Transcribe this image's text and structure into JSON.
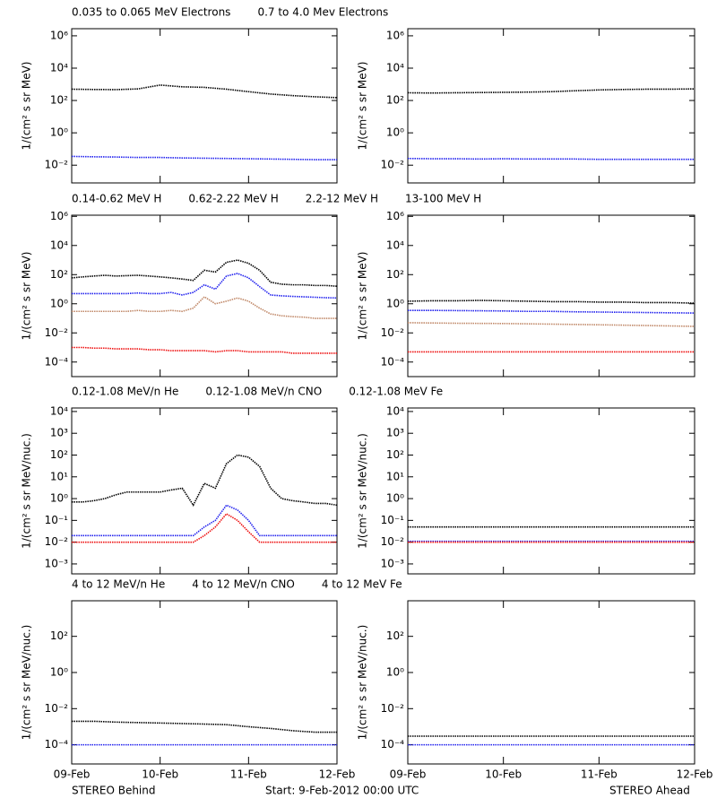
{
  "x_axis": {
    "xlim": [
      0,
      3
    ],
    "xticks": [
      {
        "value": 0,
        "label": "09-Feb"
      },
      {
        "value": 1,
        "label": "10-Feb"
      },
      {
        "value": 2,
        "label": "11-Feb"
      },
      {
        "value": 3,
        "label": "12-Feb"
      }
    ]
  },
  "footer": {
    "left": "STEREO Behind",
    "center": "Start:  9-Feb-2012 00:00 UTC",
    "right": "STEREO Ahead"
  },
  "chart_data": [
    {
      "type": "line",
      "log_y": true,
      "y_label": "1/(cm² s sr MeV)",
      "ylim": [
        0.0008,
        2750000
      ],
      "yticks": [
        {
          "value": 0.01,
          "label": "10⁻²"
        },
        {
          "value": 1,
          "label": "10⁰"
        },
        {
          "value": 100,
          "label": "10²"
        },
        {
          "value": 10000,
          "label": "10⁴"
        },
        {
          "value": 1000000,
          "label": "10⁶"
        }
      ],
      "x": [
        0,
        0.25,
        0.5,
        0.75,
        1,
        1.25,
        1.5,
        1.75,
        2,
        2.25,
        2.5,
        2.75,
        3
      ],
      "series": [
        {
          "name": "0.035 to 0.065 MeV Electrons",
          "color": "#000000",
          "values": [
            500,
            480,
            470,
            520,
            900,
            700,
            650,
            500,
            350,
            250,
            200,
            170,
            150
          ]
        },
        {
          "name": "0.7 to 4.0 Mev Electrons",
          "color": "#2222ee",
          "values": [
            0.035,
            0.033,
            0.032,
            0.03,
            0.03,
            0.028,
            0.027,
            0.026,
            0.025,
            0.024,
            0.023,
            0.022,
            0.022
          ]
        }
      ]
    },
    {
      "type": "line",
      "log_y": true,
      "y_label": "1/(cm² s sr MeV)",
      "ylim": [
        0.0008,
        2750000
      ],
      "yticks": [
        {
          "value": 0.01,
          "label": "10⁻²"
        },
        {
          "value": 1,
          "label": "10⁰"
        },
        {
          "value": 100,
          "label": "10²"
        },
        {
          "value": 10000,
          "label": "10⁴"
        },
        {
          "value": 1000000,
          "label": "10⁶"
        }
      ],
      "x": [
        0,
        0.25,
        0.5,
        0.75,
        1,
        1.25,
        1.5,
        1.75,
        2,
        2.25,
        2.5,
        2.75,
        3
      ],
      "series": [
        {
          "color": "#000000",
          "values": [
            300,
            290,
            300,
            310,
            320,
            330,
            350,
            400,
            450,
            480,
            500,
            500,
            520
          ]
        },
        {
          "color": "#2222ee",
          "values": [
            0.026,
            0.025,
            0.025,
            0.024,
            0.025,
            0.024,
            0.024,
            0.024,
            0.023,
            0.023,
            0.023,
            0.023,
            0.023
          ]
        }
      ]
    },
    {
      "type": "line",
      "log_y": true,
      "y_label": "1/(cm² s sr MeV)",
      "ylim": [
        1e-05,
        1200000
      ],
      "yticks": [
        {
          "value": 0.0001,
          "label": "10⁻⁴"
        },
        {
          "value": 0.01,
          "label": "10⁻²"
        },
        {
          "value": 1,
          "label": "10⁰"
        },
        {
          "value": 100,
          "label": "10²"
        },
        {
          "value": 10000,
          "label": "10⁴"
        },
        {
          "value": 1000000,
          "label": "10⁶"
        }
      ],
      "x": [
        0,
        0.125,
        0.25,
        0.375,
        0.5,
        0.625,
        0.75,
        0.875,
        1,
        1.125,
        1.25,
        1.375,
        1.5,
        1.625,
        1.75,
        1.875,
        2,
        2.125,
        2.25,
        2.375,
        2.5,
        2.625,
        2.75,
        2.875,
        3
      ],
      "series": [
        {
          "name": "0.14-0.62 MeV H",
          "color": "#000000",
          "values": [
            60,
            70,
            80,
            90,
            80,
            85,
            90,
            80,
            70,
            60,
            50,
            40,
            200,
            150,
            700,
            1000,
            600,
            200,
            30,
            22,
            20,
            20,
            18,
            18,
            16
          ]
        },
        {
          "name": "0.62-2.22 MeV H",
          "color": "#2222ee",
          "values": [
            5,
            5,
            5,
            5,
            5,
            5,
            5.5,
            5,
            5,
            6,
            4,
            6,
            20,
            10,
            80,
            120,
            60,
            15,
            4,
            3.5,
            3.2,
            3,
            2.8,
            2.6,
            2.5
          ]
        },
        {
          "name": "2.2-12 MeV H",
          "color": "#c08868",
          "values": [
            0.3,
            0.3,
            0.3,
            0.3,
            0.3,
            0.3,
            0.35,
            0.3,
            0.3,
            0.35,
            0.3,
            0.5,
            3,
            1,
            1.5,
            2.5,
            1.5,
            0.5,
            0.2,
            0.15,
            0.13,
            0.12,
            0.1,
            0.1,
            0.1
          ]
        },
        {
          "name": "13-100 MeV H",
          "color": "#ee1111",
          "values": [
            0.001,
            0.001,
            0.0009,
            0.0009,
            0.0008,
            0.0008,
            0.0008,
            0.0007,
            0.0007,
            0.0006,
            0.0006,
            0.0006,
            0.0006,
            0.0005,
            0.0006,
            0.0006,
            0.0005,
            0.0005,
            0.0005,
            0.0005,
            0.0004,
            0.0004,
            0.0004,
            0.0004,
            0.0004
          ]
        }
      ]
    },
    {
      "type": "line",
      "log_y": true,
      "y_label": "1/(cm² s sr MeV)",
      "ylim": [
        1e-05,
        1200000
      ],
      "yticks": [
        {
          "value": 0.0001,
          "label": "10⁻⁴"
        },
        {
          "value": 0.01,
          "label": "10⁻²"
        },
        {
          "value": 1,
          "label": "10⁰"
        },
        {
          "value": 100,
          "label": "10²"
        },
        {
          "value": 10000,
          "label": "10⁴"
        },
        {
          "value": 1000000,
          "label": "10⁶"
        }
      ],
      "x": [
        0,
        0.25,
        0.5,
        0.75,
        1,
        1.25,
        1.5,
        1.75,
        2,
        2.25,
        2.5,
        2.75,
        3
      ],
      "series": [
        {
          "color": "#000000",
          "values": [
            1.5,
            1.6,
            1.6,
            1.7,
            1.6,
            1.5,
            1.4,
            1.4,
            1.3,
            1.3,
            1.2,
            1.2,
            1.1
          ]
        },
        {
          "color": "#2222ee",
          "values": [
            0.35,
            0.35,
            0.34,
            0.33,
            0.32,
            0.3,
            0.3,
            0.28,
            0.27,
            0.26,
            0.25,
            0.24,
            0.23
          ]
        },
        {
          "color": "#c08868",
          "values": [
            0.05,
            0.048,
            0.046,
            0.045,
            0.044,
            0.042,
            0.04,
            0.038,
            0.036,
            0.034,
            0.032,
            0.03,
            0.028
          ]
        },
        {
          "color": "#ee1111",
          "values": [
            0.0005,
            0.0005,
            0.0005,
            0.0005,
            0.0005,
            0.0005,
            0.0005,
            0.0005,
            0.0005,
            0.0005,
            0.0005,
            0.0005,
            0.0005
          ]
        }
      ]
    },
    {
      "type": "line",
      "log_y": true,
      "y_label": "1/(cm² s sr MeV/nuc.)",
      "ylim": [
        0.00035,
        14500
      ],
      "yticks": [
        {
          "value": 0.001,
          "label": "10⁻³"
        },
        {
          "value": 0.01,
          "label": "10⁻²"
        },
        {
          "value": 0.1,
          "label": "10⁻¹"
        },
        {
          "value": 1,
          "label": "10⁰"
        },
        {
          "value": 10,
          "label": "10¹"
        },
        {
          "value": 100,
          "label": "10²"
        },
        {
          "value": 1000,
          "label": "10³"
        },
        {
          "value": 10000,
          "label": "10⁴"
        }
      ],
      "x": [
        0,
        0.125,
        0.25,
        0.375,
        0.5,
        0.625,
        0.75,
        0.875,
        1,
        1.125,
        1.25,
        1.375,
        1.5,
        1.625,
        1.75,
        1.875,
        2,
        2.125,
        2.25,
        2.375,
        2.5,
        2.625,
        2.75,
        2.875,
        3
      ],
      "series": [
        {
          "name": "0.12-1.08 MeV/n He",
          "color": "#000000",
          "values": [
            0.7,
            0.7,
            0.8,
            1,
            1.5,
            2,
            2,
            2,
            2,
            2.5,
            3,
            0.5,
            5,
            3,
            40,
            100,
            80,
            30,
            3,
            1,
            0.8,
            0.7,
            0.6,
            0.6,
            0.5
          ]
        },
        {
          "name": "0.12-1.08 MeV/n CNO",
          "color": "#2222ee",
          "values": [
            0.02,
            0.02,
            0.02,
            0.02,
            0.02,
            0.02,
            0.02,
            0.02,
            0.02,
            0.02,
            0.02,
            0.02,
            0.05,
            0.1,
            0.5,
            0.3,
            0.1,
            0.02,
            0.02,
            0.02,
            0.02,
            0.02,
            0.02,
            0.02,
            0.02
          ]
        },
        {
          "name": "0.12-1.08 MeV Fe",
          "color": "#ee1111",
          "values": [
            0.01,
            0.01,
            0.01,
            0.01,
            0.01,
            0.01,
            0.01,
            0.01,
            0.01,
            0.01,
            0.01,
            0.01,
            0.02,
            0.05,
            0.2,
            0.1,
            0.03,
            0.01,
            0.01,
            0.01,
            0.01,
            0.01,
            0.01,
            0.01,
            0.01
          ]
        }
      ]
    },
    {
      "type": "line",
      "log_y": true,
      "y_label": "1/(cm² s sr MeV/nuc.)",
      "ylim": [
        0.00035,
        14500
      ],
      "yticks": [
        {
          "value": 0.001,
          "label": "10⁻³"
        },
        {
          "value": 0.01,
          "label": "10⁻²"
        },
        {
          "value": 0.1,
          "label": "10⁻¹"
        },
        {
          "value": 1,
          "label": "10⁰"
        },
        {
          "value": 10,
          "label": "10¹"
        },
        {
          "value": 100,
          "label": "10²"
        },
        {
          "value": 1000,
          "label": "10³"
        },
        {
          "value": 10000,
          "label": "10⁴"
        }
      ],
      "x": [
        0,
        0.25,
        0.5,
        0.75,
        1,
        1.25,
        1.5,
        1.75,
        2,
        2.25,
        2.5,
        2.75,
        3
      ],
      "series": [
        {
          "color": "#000000",
          "values": [
            0.05,
            0.05,
            0.05,
            0.05,
            0.05,
            0.05,
            0.05,
            0.05,
            0.05,
            0.05,
            0.05,
            0.05,
            0.05
          ]
        },
        {
          "color": "#2222ee",
          "values": [
            0.011,
            0.011,
            0.011,
            0.011,
            0.011,
            0.011,
            0.011,
            0.011,
            0.011,
            0.011,
            0.011,
            0.011,
            0.011
          ]
        },
        {
          "color": "#ee1111",
          "values": [
            0.01,
            0.01,
            0.01,
            0.01,
            0.01,
            0.01,
            0.01,
            0.01,
            0.01,
            0.01,
            0.01,
            0.01,
            0.01
          ]
        }
      ]
    },
    {
      "type": "line",
      "log_y": true,
      "y_label": "1/(cm² s sr MeV/nuc.)",
      "ylim": [
        8.7e-06,
        9300
      ],
      "yticks": [
        {
          "value": 0.0001,
          "label": "10⁻⁴"
        },
        {
          "value": 0.01,
          "label": "10⁻²"
        },
        {
          "value": 1,
          "label": "10⁰"
        },
        {
          "value": 100,
          "label": "10²"
        }
      ],
      "x": [
        0,
        0.25,
        0.5,
        0.75,
        1,
        1.25,
        1.5,
        1.75,
        2,
        2.25,
        2.5,
        2.75,
        3
      ],
      "series": [
        {
          "name": "4 to 12 MeV/n He",
          "color": "#000000",
          "values": [
            0.002,
            0.002,
            0.0018,
            0.0017,
            0.0016,
            0.0015,
            0.0014,
            0.0013,
            0.001,
            0.0008,
            0.0006,
            0.0005,
            0.0005
          ]
        },
        {
          "name": "4 to 12 MeV/n CNO",
          "color": "#2222ee",
          "values": [
            0.0001,
            0.0001,
            0.0001,
            0.0001,
            0.0001,
            0.0001,
            0.0001,
            0.0001,
            0.0001,
            0.0001,
            0.0001,
            0.0001,
            0.0001
          ]
        },
        {
          "name": "4 to 12 MeV Fe",
          "color": "#ee1111",
          "values": [
            null,
            null,
            null,
            null,
            null,
            null,
            null,
            null,
            null,
            null,
            null,
            null,
            null
          ]
        }
      ]
    },
    {
      "type": "line",
      "log_y": true,
      "y_label": "1/(cm² s sr MeV/nuc.)",
      "ylim": [
        8.7e-06,
        9300
      ],
      "yticks": [
        {
          "value": 0.0001,
          "label": "10⁻⁴"
        },
        {
          "value": 0.01,
          "label": "10⁻²"
        },
        {
          "value": 1,
          "label": "10⁰"
        },
        {
          "value": 100,
          "label": "10²"
        }
      ],
      "x": [
        0,
        0.25,
        0.5,
        0.75,
        1,
        1.25,
        1.5,
        1.75,
        2,
        2.25,
        2.5,
        2.75,
        3
      ],
      "series": [
        {
          "color": "#000000",
          "values": [
            0.0003,
            0.0003,
            0.0003,
            0.0003,
            0.0003,
            0.0003,
            0.0003,
            0.0003,
            0.0003,
            0.0003,
            0.0003,
            0.0003,
            0.0003
          ]
        },
        {
          "color": "#2222ee",
          "values": [
            0.0001,
            0.0001,
            0.0001,
            0.0001,
            0.0001,
            0.0001,
            0.0001,
            0.0001,
            0.0001,
            0.0001,
            0.0001,
            0.0001,
            0.0001
          ]
        }
      ]
    }
  ]
}
